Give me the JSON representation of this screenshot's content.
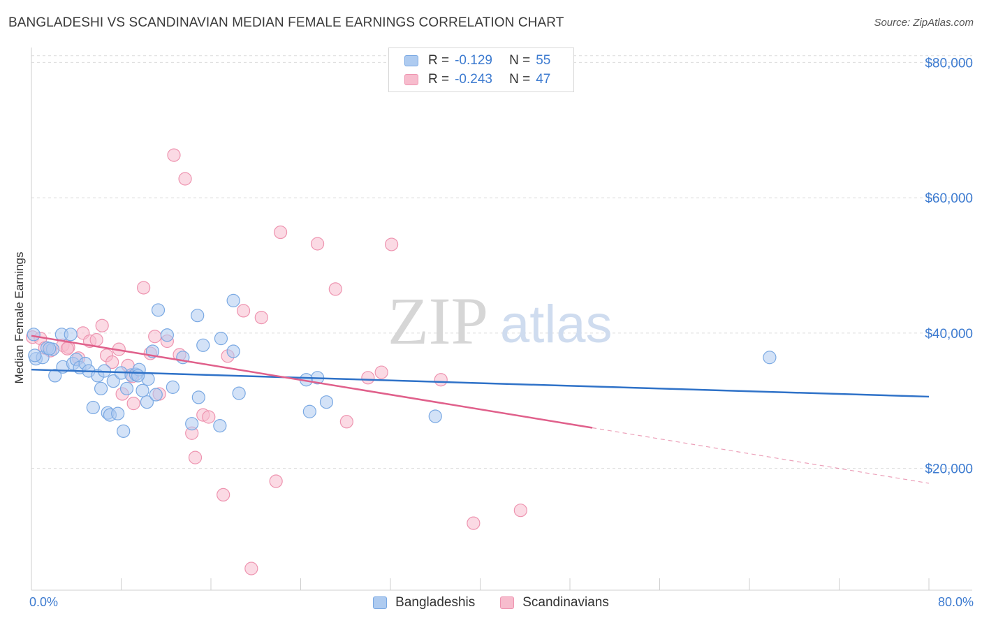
{
  "header": {
    "title": "BANGLADESHI VS SCANDINAVIAN MEDIAN FEMALE EARNINGS CORRELATION CHART",
    "source": "Source: ZipAtlas.com"
  },
  "watermark": {
    "zip": "ZIP",
    "atlas": "atlas"
  },
  "legend_top": [
    {
      "r_label": "R =",
      "r_value": "-0.129",
      "n_label": "N =",
      "n_value": "55"
    },
    {
      "r_label": "R =",
      "r_value": "-0.243",
      "n_label": "N =",
      "n_value": "47"
    }
  ],
  "legend_bottom": [
    {
      "label": "Bangladeshis"
    },
    {
      "label": "Scandinavians"
    }
  ],
  "colors": {
    "blue_fill": "#aecbf0",
    "blue_stroke": "#7aa9e3",
    "blue_line": "#2f72c8",
    "pink_fill": "#f7bccd",
    "pink_stroke": "#ee94b0",
    "pink_line": "#e0608b",
    "tick_label": "#3d7bd0",
    "grid": "#dcdcdc"
  },
  "chart_data": {
    "type": "scatter",
    "title": "BANGLADESHI VS SCANDINAVIAN MEDIAN FEMALE EARNINGS CORRELATION CHART",
    "xlabel": "",
    "ylabel": "Median Female Earnings",
    "xlim": [
      0,
      80
    ],
    "ylim": [
      2000,
      82000
    ],
    "x_tick_labels": [
      "0.0%",
      "80.0%"
    ],
    "y_ticks": [
      20000,
      40000,
      60000,
      80000
    ],
    "y_tick_labels": [
      "$20,000",
      "$40,000",
      "$60,000",
      "$80,000"
    ],
    "grid": true,
    "series": [
      {
        "name": "Bangladeshis",
        "color": "#aecbf0",
        "points": [
          [
            0.2,
            39800
          ],
          [
            0.4,
            36200
          ],
          [
            1.0,
            36400
          ],
          [
            1.4,
            37800
          ],
          [
            1.9,
            37600
          ],
          [
            2.1,
            33700
          ],
          [
            2.7,
            39800
          ],
          [
            2.8,
            35000
          ],
          [
            3.5,
            39800
          ],
          [
            3.7,
            35500
          ],
          [
            4.0,
            36100
          ],
          [
            4.3,
            34900
          ],
          [
            4.8,
            35500
          ],
          [
            5.1,
            34400
          ],
          [
            5.5,
            29000
          ],
          [
            5.9,
            33700
          ],
          [
            6.2,
            31800
          ],
          [
            6.5,
            34400
          ],
          [
            6.8,
            28200
          ],
          [
            7.0,
            27900
          ],
          [
            7.3,
            32900
          ],
          [
            7.7,
            28100
          ],
          [
            8.0,
            34100
          ],
          [
            8.2,
            25500
          ],
          [
            8.5,
            31800
          ],
          [
            8.9,
            33800
          ],
          [
            9.3,
            33900
          ],
          [
            9.6,
            34600
          ],
          [
            9.9,
            31500
          ],
          [
            10.3,
            29800
          ],
          [
            10.4,
            33200
          ],
          [
            10.8,
            37300
          ],
          [
            11.1,
            30900
          ],
          [
            11.3,
            43400
          ],
          [
            12.1,
            39700
          ],
          [
            12.6,
            32000
          ],
          [
            13.5,
            36400
          ],
          [
            14.3,
            26600
          ],
          [
            14.8,
            42600
          ],
          [
            14.9,
            30500
          ],
          [
            15.3,
            38200
          ],
          [
            16.8,
            26300
          ],
          [
            16.9,
            39200
          ],
          [
            18.0,
            37300
          ],
          [
            18.0,
            44800
          ],
          [
            18.5,
            31100
          ],
          [
            24.5,
            33100
          ],
          [
            24.8,
            28400
          ],
          [
            25.5,
            33400
          ],
          [
            26.3,
            29800
          ],
          [
            36.0,
            27700
          ],
          [
            65.8,
            36400
          ],
          [
            0.3,
            36700
          ],
          [
            1.6,
            37700
          ],
          [
            9.5,
            33700
          ]
        ]
      },
      {
        "name": "Scandinavians",
        "color": "#f7bccd",
        "points": [
          [
            0.1,
            39400
          ],
          [
            0.8,
            39200
          ],
          [
            1.2,
            37800
          ],
          [
            1.7,
            37400
          ],
          [
            2.8,
            38200
          ],
          [
            3.3,
            37900
          ],
          [
            4.2,
            36300
          ],
          [
            4.6,
            40000
          ],
          [
            5.2,
            38800
          ],
          [
            5.8,
            39000
          ],
          [
            6.3,
            41100
          ],
          [
            6.7,
            36700
          ],
          [
            7.2,
            35700
          ],
          [
            7.8,
            37600
          ],
          [
            8.1,
            31000
          ],
          [
            8.6,
            35200
          ],
          [
            9.1,
            29600
          ],
          [
            10.0,
            46700
          ],
          [
            10.6,
            37000
          ],
          [
            11.0,
            39500
          ],
          [
            11.4,
            31000
          ],
          [
            12.1,
            38800
          ],
          [
            12.7,
            66300
          ],
          [
            13.2,
            36800
          ],
          [
            13.7,
            62800
          ],
          [
            14.3,
            25200
          ],
          [
            14.6,
            21600
          ],
          [
            15.3,
            27900
          ],
          [
            15.8,
            27600
          ],
          [
            17.1,
            16100
          ],
          [
            17.5,
            36600
          ],
          [
            18.9,
            43300
          ],
          [
            19.6,
            5200
          ],
          [
            20.5,
            42300
          ],
          [
            21.8,
            18100
          ],
          [
            22.2,
            54900
          ],
          [
            25.5,
            53200
          ],
          [
            27.1,
            46500
          ],
          [
            28.1,
            26900
          ],
          [
            30.0,
            33400
          ],
          [
            31.2,
            34200
          ],
          [
            32.1,
            53100
          ],
          [
            39.4,
            11900
          ],
          [
            43.6,
            13800
          ],
          [
            36.5,
            33100
          ],
          [
            3.2,
            37700
          ],
          [
            9.0,
            33600
          ]
        ]
      }
    ],
    "trendlines": [
      {
        "series": "Bangladeshis",
        "x": [
          0,
          80
        ],
        "y": [
          34600,
          30600
        ],
        "style": "solid"
      },
      {
        "series": "Scandinavians",
        "x": [
          0,
          50
        ],
        "y": [
          39600,
          26000
        ],
        "style": "solid"
      },
      {
        "series": "Scandinavians",
        "x": [
          50,
          80
        ],
        "y": [
          26000,
          17800
        ],
        "style": "dashed"
      }
    ]
  }
}
